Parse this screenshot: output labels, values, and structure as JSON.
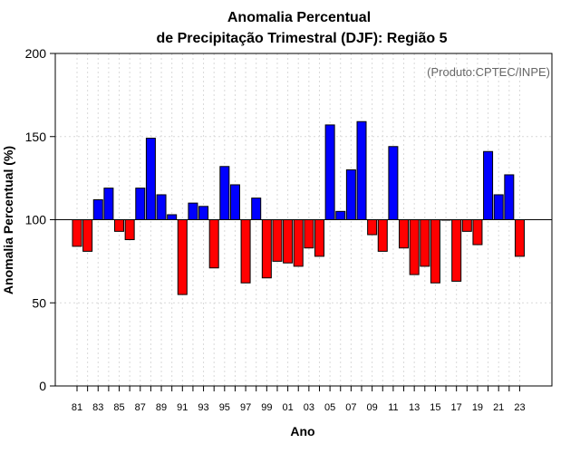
{
  "chart_data": {
    "type": "bar",
    "title_line1": "Anomalia Percentual",
    "title_line2": "de Precipitação Trimestral (DJF): Região 5",
    "xlabel": "Ano",
    "ylabel": "Anomalia Percentual (%)",
    "credit": "(Produto:CPTEC/INPE)",
    "ylim": [
      0,
      200
    ],
    "yticks": [
      "0",
      "50",
      "100",
      "150",
      "200"
    ],
    "baseline": 100,
    "categories": [
      "81",
      "82",
      "83",
      "84",
      "85",
      "86",
      "87",
      "88",
      "89",
      "90",
      "91",
      "92",
      "93",
      "94",
      "95",
      "96",
      "97",
      "98",
      "99",
      "00",
      "01",
      "02",
      "03",
      "04",
      "05",
      "06",
      "07",
      "08",
      "09",
      "10",
      "11",
      "12",
      "13",
      "14",
      "15",
      "16",
      "17",
      "18",
      "19",
      "20",
      "21",
      "22",
      "23"
    ],
    "xtick_labels": [
      "81",
      "83",
      "85",
      "87",
      "89",
      "91",
      "93",
      "95",
      "97",
      "99",
      "01",
      "03",
      "05",
      "07",
      "09",
      "11",
      "13",
      "15",
      "17",
      "19",
      "21",
      "23"
    ],
    "values": [
      84,
      81,
      112,
      119,
      93,
      88,
      119,
      149,
      115,
      103,
      55,
      110,
      108,
      71,
      132,
      121,
      62,
      113,
      65,
      75,
      74,
      72,
      83,
      78,
      157,
      105,
      130,
      159,
      91,
      81,
      144,
      83,
      67,
      72,
      62,
      100,
      63,
      93,
      85,
      141,
      115,
      127,
      78
    ],
    "grid": true,
    "colors": {
      "above": "#0000ff",
      "below": "#ff0000",
      "bar_edge": "#000000",
      "grid": "#d9d9d9"
    }
  }
}
